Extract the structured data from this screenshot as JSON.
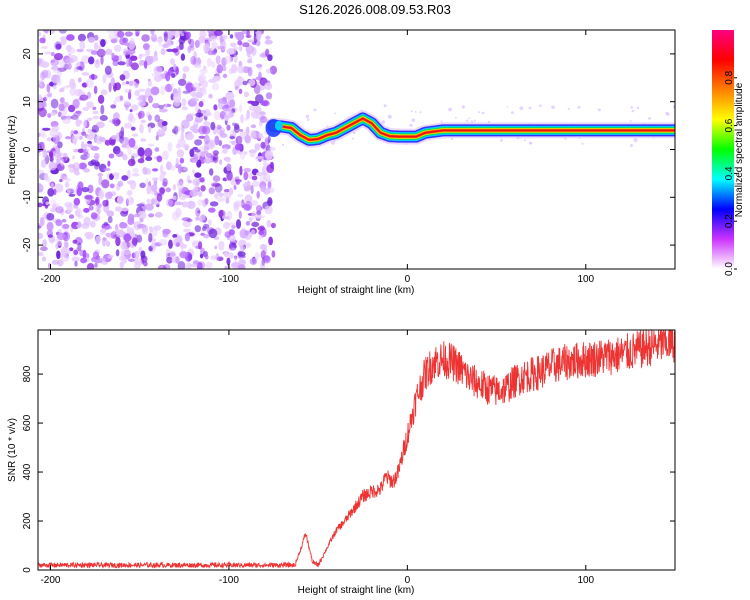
{
  "title": "S126.2026.008.09.53.R03",
  "chart_data": [
    {
      "type": "heatmap",
      "name": "spectrogram",
      "xlabel": "Height of straight line (km)",
      "ylabel": "Frequency (Hz)",
      "xlim": [
        -207,
        150
      ],
      "ylim": [
        -25,
        25
      ],
      "xticks": [
        -200,
        -100,
        0,
        100
      ],
      "yticks": [
        -20,
        -10,
        0,
        10,
        20
      ],
      "colorbar": {
        "label": "Normalized spectral amplitude",
        "range": [
          0,
          1
        ],
        "ticks": [
          0.0,
          0.2,
          0.4,
          0.6,
          0.8
        ],
        "tick_labels": [
          "0.0",
          "0.2",
          "0.4",
          "0.6",
          "0.8"
        ],
        "colors": [
          "#ffffff",
          "#cc33ff",
          "#0000ff",
          "#00ffff",
          "#00ff00",
          "#ffff00",
          "#ff8000",
          "#ff0000",
          "#ff0080"
        ]
      },
      "noise_region_x": [
        -207,
        -75
      ],
      "ridge_frequency": {
        "x": [
          -75,
          -70,
          -65,
          -60,
          -55,
          -50,
          -45,
          -40,
          -35,
          -30,
          -25,
          -20,
          -15,
          -10,
          -5,
          0,
          5,
          10,
          20,
          40,
          60,
          80,
          100,
          120,
          150
        ],
        "y": [
          5,
          4.8,
          4.5,
          3,
          2,
          2.2,
          3,
          3.5,
          4.5,
          5.5,
          6.5,
          5.5,
          3.5,
          2.8,
          2.7,
          2.7,
          2.7,
          3.5,
          4,
          4,
          4,
          4,
          4,
          4,
          4
        ]
      }
    },
    {
      "type": "line",
      "name": "snr",
      "xlabel": "Height of straight line (km)",
      "ylabel": "SNR (10 * v/v)",
      "xlim": [
        -207,
        150
      ],
      "ylim": [
        0,
        980
      ],
      "xticks": [
        -200,
        -100,
        0,
        100
      ],
      "yticks": [
        0,
        200,
        400,
        600,
        800
      ],
      "color": "#ee3333",
      "series": [
        {
          "name": "SNR",
          "x": [
            -207,
            -150,
            -100,
            -70,
            -63,
            -60,
            -57,
            -53,
            -50,
            -45,
            -40,
            -35,
            -30,
            -25,
            -20,
            -15,
            -12,
            -8,
            -5,
            0,
            5,
            10,
            15,
            20,
            25,
            30,
            35,
            40,
            45,
            50,
            55,
            60,
            65,
            70,
            75,
            80,
            90,
            100,
            110,
            120,
            130,
            140,
            150
          ],
          "y": [
            20,
            20,
            20,
            20,
            20,
            80,
            150,
            30,
            20,
            90,
            160,
            200,
            250,
            300,
            320,
            330,
            380,
            360,
            400,
            550,
            700,
            800,
            850,
            860,
            850,
            820,
            780,
            760,
            740,
            730,
            740,
            770,
            790,
            800,
            810,
            830,
            850,
            860,
            870,
            880,
            900,
            920,
            930
          ]
        }
      ]
    }
  ]
}
